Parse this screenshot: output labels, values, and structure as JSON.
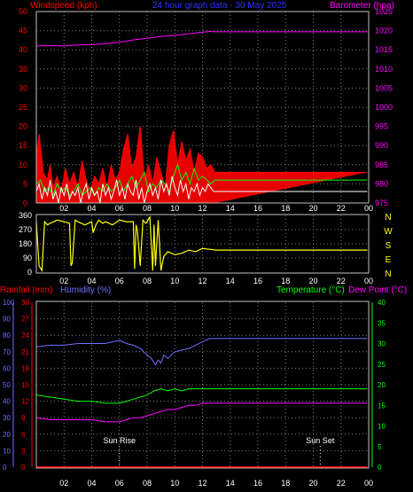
{
  "chart_data": [
    {
      "type": "line",
      "title": "24 hour graph data - 30 May 2025",
      "ylabel_left": "Windspeed (kph)",
      "ylabel_right": "Barometer (hpa)",
      "x_ticks": [
        "02",
        "04",
        "06",
        "08",
        "10",
        "12",
        "14",
        "16",
        "18",
        "20",
        "22",
        "00"
      ],
      "y_left_ticks": [
        "0",
        "5",
        "10",
        "15",
        "20",
        "25",
        "30",
        "35",
        "40",
        "45",
        "50"
      ],
      "y_right_ticks": [
        "975",
        "980",
        "985",
        "990",
        "995",
        "1000",
        "1005",
        "1010",
        "1015",
        "1020",
        "1025"
      ],
      "ylim_left": [
        0,
        50
      ],
      "ylim_right": [
        975,
        1025
      ],
      "grid": true,
      "series": [
        {
          "name": "Barometer (hpa)",
          "axis": "right",
          "color": "#ff00ff",
          "x": [
            0,
            1,
            2,
            3,
            4,
            5,
            6,
            7,
            8,
            9,
            10,
            11,
            12,
            12.5,
            13,
            14,
            16,
            18,
            20,
            22,
            23.9
          ],
          "values": [
            1016,
            1016.1,
            1016,
            1016.3,
            1016.4,
            1016.6,
            1017,
            1017.6,
            1018,
            1018.5,
            1018.8,
            1019.2,
            1019.6,
            1019.8,
            1019.7,
            1019.7,
            1019.7,
            1019.7,
            1019.7,
            1019.7,
            1019.7
          ]
        },
        {
          "name": "Wind gust",
          "axis": "left",
          "color": "#ff0000",
          "x": [
            0,
            0.2,
            0.5,
            0.8,
            1.0,
            1.2,
            1.5,
            1.8,
            2.1,
            2.4,
            2.7,
            3.0,
            3.3,
            3.6,
            3.9,
            4.2,
            4.5,
            4.8,
            5.1,
            5.4,
            5.7,
            6.0,
            6.3,
            6.6,
            6.9,
            7.2,
            7.5,
            7.8,
            8.1,
            8.4,
            8.7,
            9.0,
            9.3,
            9.6,
            9.9,
            10.2,
            10.5,
            10.8,
            11.1,
            11.4,
            11.7,
            12.0,
            12.3,
            12.6,
            12.9,
            13,
            14,
            16,
            18,
            20,
            22,
            23.9
          ],
          "values": [
            12,
            18,
            8,
            6,
            10,
            4,
            7,
            3,
            9,
            5,
            8,
            4,
            11,
            6,
            3,
            7,
            5,
            9,
            4,
            10,
            6,
            8,
            14,
            18,
            9,
            12,
            20,
            6,
            10,
            5,
            12,
            8,
            4,
            15,
            19,
            10,
            16,
            11,
            14,
            8,
            13,
            12,
            9,
            10,
            8,
            8,
            8,
            8,
            8,
            8,
            8,
            8
          ]
        },
        {
          "name": "Wind average",
          "axis": "left",
          "color": "#00ff00",
          "x": [
            0,
            0.3,
            0.6,
            0.9,
            1.2,
            1.5,
            1.8,
            2.1,
            2.4,
            2.7,
            3.0,
            3.3,
            3.6,
            3.9,
            4.2,
            4.5,
            4.8,
            5.1,
            5.4,
            5.7,
            6.0,
            6.3,
            6.6,
            6.9,
            7.2,
            7.5,
            7.8,
            8.1,
            8.4,
            8.7,
            9.0,
            9.3,
            9.6,
            9.9,
            10.2,
            10.5,
            10.8,
            11.1,
            11.4,
            11.7,
            12.0,
            12.3,
            12.6,
            12.9,
            13,
            14,
            16,
            18,
            20,
            22,
            23.9
          ],
          "values": [
            5,
            6,
            3,
            4,
            2,
            5,
            3,
            4,
            2,
            3,
            5,
            2,
            3,
            4,
            2,
            4,
            3,
            5,
            3,
            4,
            6,
            3,
            5,
            7,
            4,
            6,
            8,
            3,
            5,
            4,
            6,
            5,
            3,
            7,
            10,
            6,
            8,
            5,
            9,
            6,
            7,
            6,
            5,
            6,
            6,
            6,
            6,
            6,
            6,
            6,
            6
          ]
        },
        {
          "name": "Wind speed",
          "axis": "left",
          "color": "#ffffff",
          "x": [
            0,
            0.2,
            0.4,
            0.6,
            0.8,
            1.0,
            1.2,
            1.4,
            1.6,
            1.8,
            2.0,
            2.2,
            2.4,
            2.6,
            2.8,
            3.0,
            3.2,
            3.4,
            3.6,
            3.8,
            4.0,
            4.2,
            4.4,
            4.6,
            4.8,
            5.0,
            5.2,
            5.4,
            5.6,
            5.8,
            6.0,
            6.2,
            6.4,
            6.6,
            6.8,
            7.0,
            7.2,
            7.4,
            7.6,
            7.8,
            8.0,
            8.2,
            8.4,
            8.6,
            8.8,
            9.0,
            9.2,
            9.4,
            9.6,
            9.8,
            10.0,
            10.2,
            10.4,
            10.6,
            10.8,
            11.0,
            11.2,
            11.4,
            11.6,
            11.8,
            12.0,
            12.2,
            12.4,
            12.6,
            12.8,
            13,
            14,
            16,
            18,
            20,
            22,
            23.9
          ],
          "values": [
            3,
            5,
            1,
            4,
            2,
            6,
            1,
            3,
            0,
            4,
            2,
            5,
            1,
            3,
            2,
            4,
            0,
            3,
            5,
            1,
            4,
            2,
            3,
            0,
            5,
            2,
            4,
            1,
            3,
            6,
            2,
            4,
            1,
            5,
            3,
            2,
            6,
            1,
            4,
            0,
            3,
            5,
            2,
            4,
            1,
            6,
            3,
            5,
            2,
            7,
            4,
            2,
            6,
            3,
            5,
            1,
            4,
            3,
            5,
            2,
            4,
            3,
            5,
            4,
            3,
            3,
            3,
            3,
            3,
            3,
            3,
            3
          ]
        }
      ]
    },
    {
      "type": "line",
      "ylabel_right": "N W S E N",
      "right_labels": [
        "N",
        "W",
        "S",
        "E",
        "N"
      ],
      "x_ticks": [
        "02",
        "04",
        "06",
        "08",
        "10",
        "12",
        "14",
        "16",
        "18",
        "20",
        "22",
        "00"
      ],
      "y_left_ticks": [
        "360",
        "270",
        "180",
        "90",
        "0"
      ],
      "ylim": [
        0,
        360
      ],
      "grid": true,
      "series": [
        {
          "name": "Wind direction",
          "color": "#ffff00",
          "x": [
            0,
            0.2,
            0.4,
            0.6,
            0.8,
            1.0,
            1.5,
            2.0,
            2.4,
            2.5,
            2.6,
            2.8,
            3.0,
            3.5,
            4.0,
            4.1,
            4.3,
            4.5,
            4.8,
            5.0,
            5.5,
            6.0,
            6.5,
            7.0,
            7.1,
            7.2,
            7.3,
            7.5,
            7.7,
            7.9,
            8.0,
            8.2,
            8.4,
            8.5,
            8.6,
            8.8,
            9.0,
            9.2,
            9.5,
            10.0,
            10.5,
            11.0,
            11.5,
            12.0,
            12.5,
            13,
            14,
            16,
            18,
            20,
            22,
            23.9
          ],
          "values": [
            320,
            40,
            10,
            320,
            300,
            310,
            330,
            320,
            310,
            40,
            60,
            330,
            320,
            300,
            320,
            250,
            300,
            330,
            310,
            320,
            300,
            330,
            320,
            320,
            20,
            300,
            260,
            40,
            330,
            310,
            320,
            350,
            10,
            300,
            40,
            330,
            10,
            100,
            130,
            110,
            120,
            140,
            130,
            150,
            145,
            140,
            140,
            140,
            140,
            140,
            140,
            140
          ]
        }
      ]
    },
    {
      "type": "line",
      "ylabel_left_1": "Rainfall (mm)",
      "ylabel_left_2": "Humidity (%)",
      "ylabel_right_1": "Temperature (°C)",
      "ylabel_right_2": "Dew Point (°C)",
      "x_ticks": [
        "02",
        "04",
        "06",
        "08",
        "10",
        "12",
        "14",
        "16",
        "18",
        "20",
        "22",
        "00"
      ],
      "humidity_ticks": [
        "0",
        "10",
        "20",
        "30",
        "40",
        "50",
        "60",
        "70",
        "80",
        "90",
        "100"
      ],
      "rain_ticks": [
        "0",
        "3",
        "6",
        "9",
        "12",
        "15",
        "18",
        "21",
        "24",
        "27",
        "30"
      ],
      "temp_ticks": [
        "0",
        "5",
        "10",
        "15",
        "20",
        "25",
        "30",
        "35",
        "40"
      ],
      "annotations": [
        {
          "text": "Sun Rise",
          "x": 6
        },
        {
          "text": "Sun Set",
          "x": 20.5
        }
      ],
      "grid": true,
      "series": [
        {
          "name": "Humidity (%)",
          "color": "#6f6fff",
          "ylim": [
            0,
            100
          ],
          "x": [
            0,
            1,
            2,
            3,
            4,
            5,
            6,
            6.5,
            7,
            7.5,
            8,
            8.3,
            8.6,
            8.8,
            9.0,
            9.2,
            9.5,
            10,
            10.5,
            11,
            11.5,
            12,
            12.5,
            13,
            14,
            16,
            18,
            20,
            22,
            23.9
          ],
          "values": [
            73,
            74,
            74,
            75,
            75,
            75,
            77,
            75,
            74,
            72,
            68,
            66,
            62,
            65,
            63,
            68,
            66,
            70,
            71,
            72,
            74,
            76,
            78,
            78,
            78,
            78,
            78,
            78,
            78,
            78
          ]
        },
        {
          "name": "Temperature (°C)",
          "color": "#00ff00",
          "ylim": [
            0,
            40
          ],
          "x": [
            0,
            1,
            2,
            3,
            4,
            5,
            6,
            6.5,
            7,
            7.5,
            8,
            8.5,
            9,
            9.5,
            10,
            10.5,
            11,
            11.5,
            12,
            12.5,
            13,
            14,
            16,
            18,
            20,
            22,
            23.9
          ],
          "values": [
            17.5,
            17,
            16.5,
            16,
            16,
            15.5,
            15.5,
            16,
            16.5,
            17,
            17.5,
            18.5,
            19,
            18.5,
            19,
            18.5,
            19,
            19,
            19,
            19,
            19,
            19,
            19,
            19,
            19,
            19,
            19
          ]
        },
        {
          "name": "Dew Point (°C)",
          "color": "#ff00ff",
          "ylim": [
            0,
            40
          ],
          "x": [
            0,
            1,
            2,
            3,
            4,
            5,
            6,
            6.5,
            7,
            7.5,
            8,
            8.5,
            9,
            9.5,
            10,
            10.5,
            11,
            11.5,
            12,
            12.5,
            13,
            14,
            16,
            18,
            20,
            22,
            23.9
          ],
          "values": [
            12,
            11.5,
            11.5,
            11.5,
            11.5,
            11,
            11,
            11.5,
            12,
            12,
            12.5,
            13,
            13.5,
            14,
            14,
            14.5,
            15,
            15,
            15.5,
            15.5,
            15.5,
            15.5,
            15.5,
            15.5,
            15.5,
            15.5,
            15.5
          ]
        },
        {
          "name": "Rainfall (mm)",
          "color": "#ff0000",
          "ylim": [
            0,
            30
          ],
          "x": [
            0,
            23.9
          ],
          "values": [
            0,
            0
          ]
        }
      ]
    }
  ],
  "colors": {
    "background": "#000000",
    "grid": "#808080",
    "frame": "#c0c0c0",
    "wind_label": "#ff0000",
    "title": "#3030ff",
    "baro_label": "#ff00ff",
    "tick": "#ff0000",
    "baro_tick": "#ff00ff",
    "axis_label_x": "#ffffff",
    "dir_tick": "#ffffff",
    "compass": "#ffff00",
    "rain_label": "#ff0000",
    "humidity_label": "#6f6fff",
    "temp_label": "#00ff00",
    "dew_label": "#ff00ff",
    "temp_tick": "#00ff00"
  }
}
